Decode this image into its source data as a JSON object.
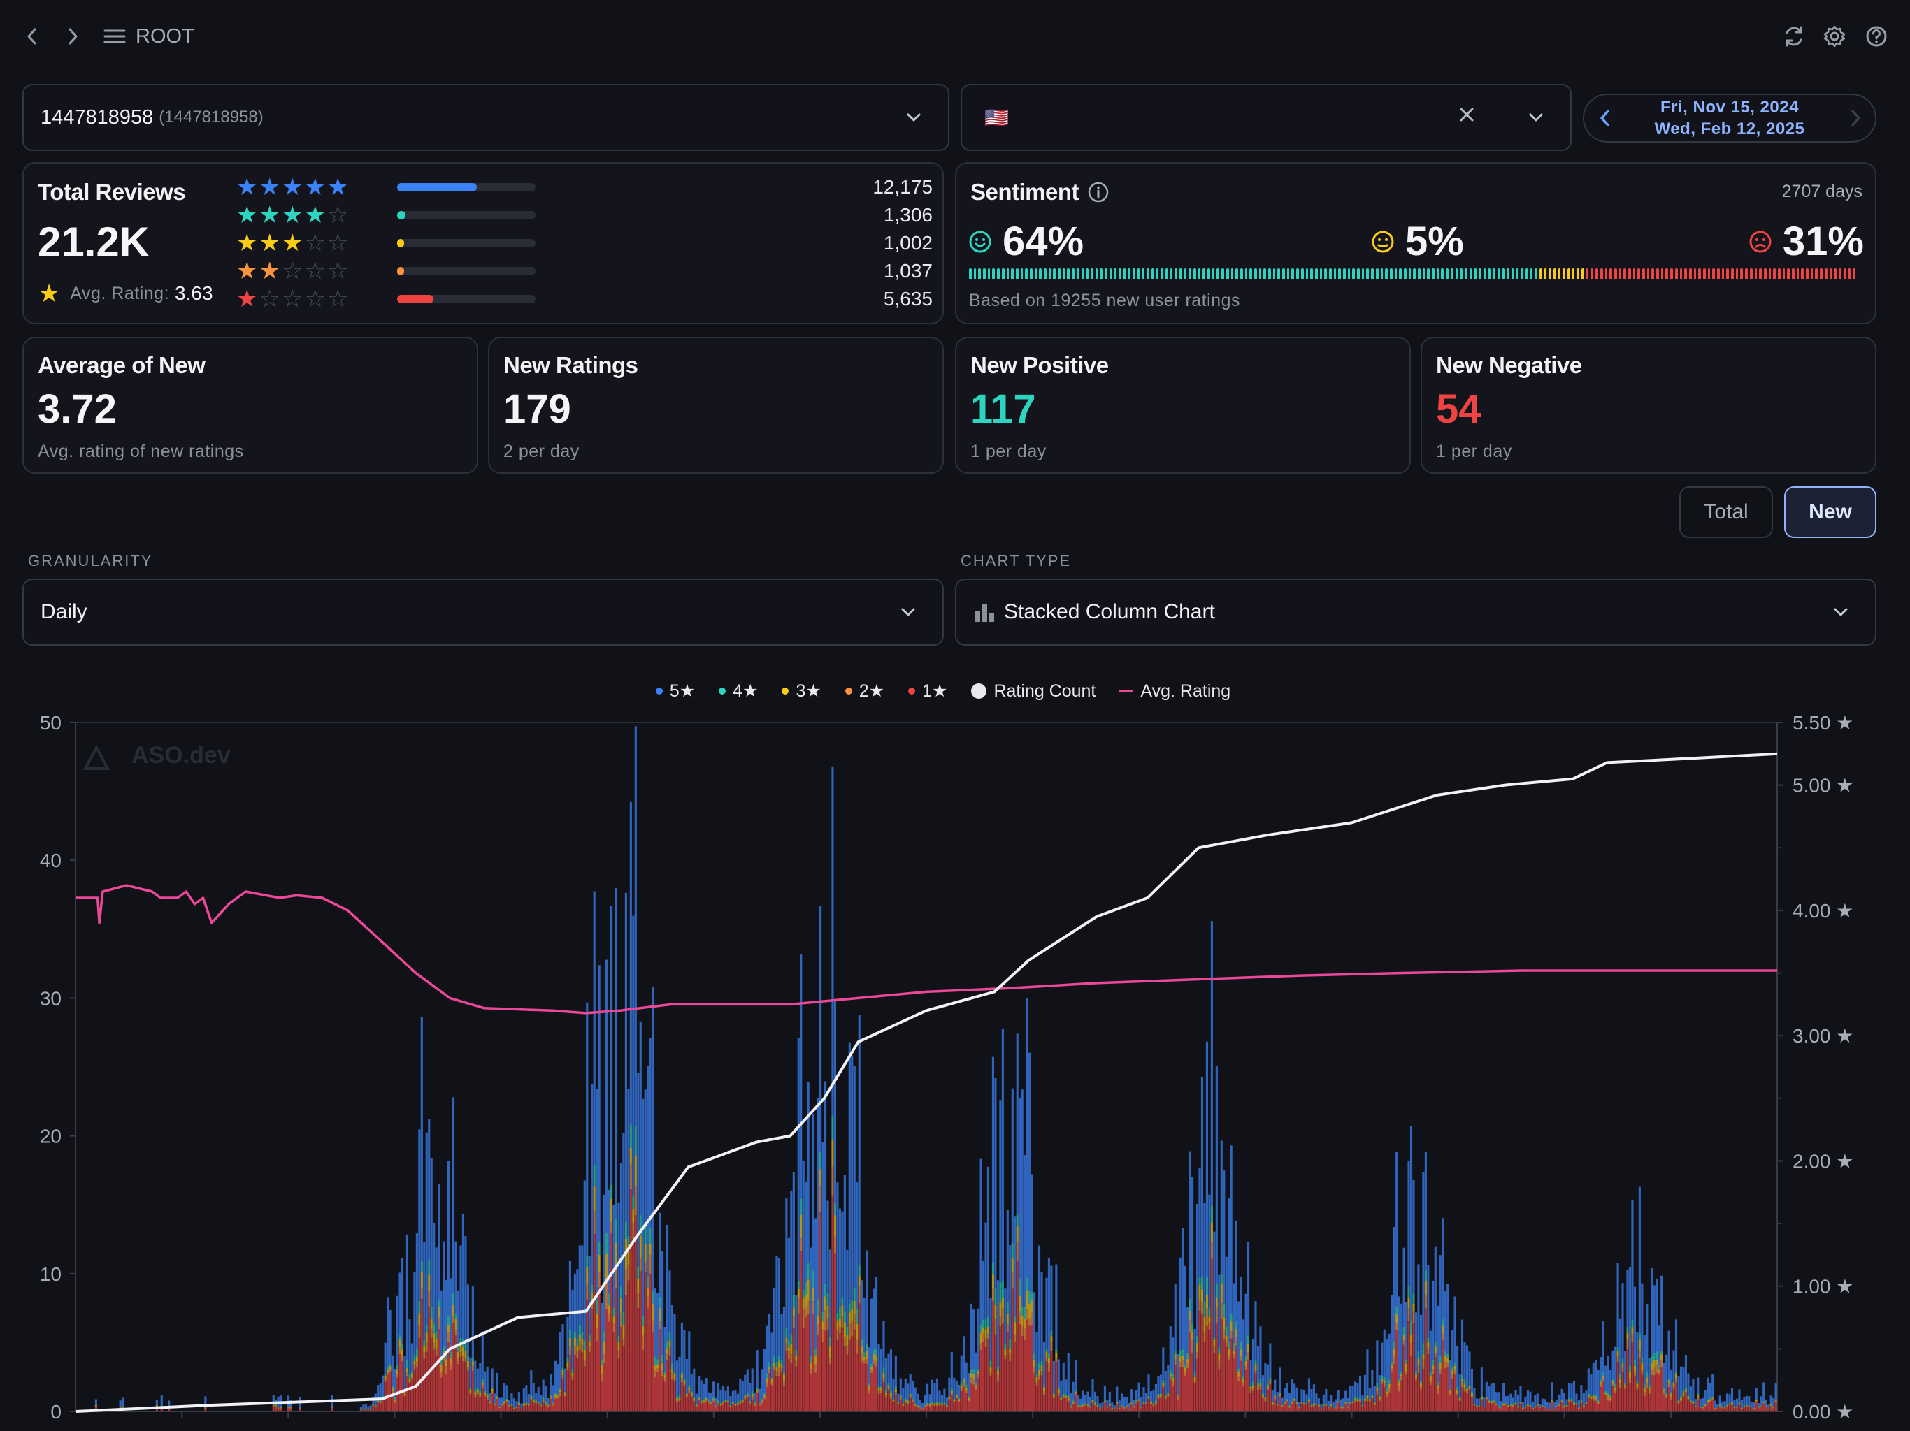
{
  "breadcrumb": {
    "label": "ROOT"
  },
  "app_select": {
    "id": "1447818958",
    "id_secondary": "(1447818958)"
  },
  "country_select": {
    "flag": "🇺🇸"
  },
  "date_range": {
    "start": "Fri, Nov 15, 2024",
    "end": "Wed, Feb 12, 2025"
  },
  "total_reviews": {
    "title": "Total Reviews",
    "value": "21.2K",
    "avg_label": "Avg. Rating:",
    "avg_value": "3.63",
    "rows": [
      {
        "stars": 5,
        "count": "12,175",
        "share": 0.57,
        "color": "#3b82f6"
      },
      {
        "stars": 4,
        "count": "1,306",
        "share": 0.06,
        "color": "#2dd4bf"
      },
      {
        "stars": 3,
        "count": "1,002",
        "share": 0.05,
        "color": "#facc15"
      },
      {
        "stars": 2,
        "count": "1,037",
        "share": 0.05,
        "color": "#fb923c"
      },
      {
        "stars": 1,
        "count": "5,635",
        "share": 0.26,
        "color": "#ef4444"
      }
    ]
  },
  "sentiment": {
    "title": "Sentiment",
    "days": "2707 days",
    "positive": "64%",
    "neutral": "5%",
    "negative": "31%",
    "positive_share": 0.64,
    "neutral_share": 0.05,
    "negative_share": 0.31,
    "footnote": "Based on 19255 new user ratings",
    "colors": {
      "positive": "#2dd4bf",
      "neutral": "#facc15",
      "negative": "#ef4444"
    }
  },
  "stats": [
    {
      "title": "Average of New",
      "value": "3.72",
      "sub": "Avg. rating of new ratings",
      "color": "#f4f5f8"
    },
    {
      "title": "New Ratings",
      "value": "179",
      "sub": "2 per day",
      "color": "#f4f5f8"
    },
    {
      "title": "New Positive",
      "value": "117",
      "sub": "1 per day",
      "color": "#2dd4bf"
    },
    {
      "title": "New Negative",
      "value": "54",
      "sub": "1 per day",
      "color": "#ef4444"
    }
  ],
  "toggle": {
    "total": "Total",
    "new": "New",
    "active": "New"
  },
  "granularity": {
    "label": "GRANULARITY",
    "value": "Daily"
  },
  "chart_type": {
    "label": "CHART TYPE",
    "value": "Stacked Column Chart"
  },
  "chart_data": {
    "type": "bar",
    "watermark": "ASO.dev",
    "legend": [
      {
        "name": "5★",
        "color": "#3b82f6",
        "kind": "dot"
      },
      {
        "name": "4★",
        "color": "#2dd4bf",
        "kind": "dot"
      },
      {
        "name": "3★",
        "color": "#facc15",
        "kind": "dot"
      },
      {
        "name": "2★",
        "color": "#fb923c",
        "kind": "dot"
      },
      {
        "name": "1★",
        "color": "#ef4444",
        "kind": "dot"
      },
      {
        "name": "Rating Count",
        "color": "#e8e9ee",
        "kind": "circle"
      },
      {
        "name": "Avg. Rating",
        "color": "#ec4899",
        "kind": "line"
      }
    ],
    "y_left": {
      "ticks": [
        "0",
        "10",
        "20",
        "30",
        "40",
        "50"
      ],
      "lim": [
        0,
        50
      ]
    },
    "y_right": {
      "ticks": [
        "0.00 ★",
        "1.00 ★",
        "2.00 ★",
        "3.00 ★",
        "4.00 ★",
        "5.00 ★",
        "5.50 ★"
      ],
      "values": [
        0,
        1,
        2,
        3,
        4,
        5,
        5.5
      ],
      "lim": [
        0,
        5.5
      ]
    },
    "bursts": [
      {
        "center": 0.21,
        "width": 0.03,
        "peak": 20
      },
      {
        "center": 0.32,
        "width": 0.035,
        "peak": 38
      },
      {
        "center": 0.44,
        "width": 0.035,
        "peak": 33
      },
      {
        "center": 0.55,
        "width": 0.03,
        "peak": 25
      },
      {
        "center": 0.67,
        "width": 0.03,
        "peak": 22
      },
      {
        "center": 0.79,
        "width": 0.03,
        "peak": 16
      },
      {
        "center": 0.92,
        "width": 0.03,
        "peak": 11
      }
    ],
    "rating_count_curve": [
      [
        0,
        0
      ],
      [
        0.08,
        0.05
      ],
      [
        0.18,
        0.1
      ],
      [
        0.2,
        0.2
      ],
      [
        0.22,
        0.5
      ],
      [
        0.26,
        0.75
      ],
      [
        0.3,
        0.8
      ],
      [
        0.33,
        1.4
      ],
      [
        0.36,
        1.95
      ],
      [
        0.4,
        2.15
      ],
      [
        0.42,
        2.2
      ],
      [
        0.44,
        2.5
      ],
      [
        0.46,
        2.95
      ],
      [
        0.5,
        3.2
      ],
      [
        0.54,
        3.35
      ],
      [
        0.56,
        3.6
      ],
      [
        0.6,
        3.95
      ],
      [
        0.63,
        4.1
      ],
      [
        0.66,
        4.5
      ],
      [
        0.7,
        4.6
      ],
      [
        0.75,
        4.7
      ],
      [
        0.8,
        4.92
      ],
      [
        0.84,
        5.0
      ],
      [
        0.88,
        5.05
      ],
      [
        0.9,
        5.18
      ],
      [
        0.93,
        5.2
      ],
      [
        1.0,
        5.25
      ]
    ],
    "avg_rating_curve": [
      [
        0,
        4.1
      ],
      [
        0.013,
        4.1
      ],
      [
        0.014,
        3.9
      ],
      [
        0.016,
        4.15
      ],
      [
        0.03,
        4.2
      ],
      [
        0.045,
        4.15
      ],
      [
        0.05,
        4.1
      ],
      [
        0.06,
        4.1
      ],
      [
        0.065,
        4.15
      ],
      [
        0.07,
        4.05
      ],
      [
        0.075,
        4.1
      ],
      [
        0.08,
        3.9
      ],
      [
        0.09,
        4.05
      ],
      [
        0.1,
        4.15
      ],
      [
        0.12,
        4.1
      ],
      [
        0.13,
        4.12
      ],
      [
        0.145,
        4.1
      ],
      [
        0.16,
        4.0
      ],
      [
        0.18,
        3.75
      ],
      [
        0.2,
        3.5
      ],
      [
        0.22,
        3.3
      ],
      [
        0.24,
        3.22
      ],
      [
        0.28,
        3.2
      ],
      [
        0.3,
        3.18
      ],
      [
        0.32,
        3.2
      ],
      [
        0.35,
        3.25
      ],
      [
        0.38,
        3.25
      ],
      [
        0.42,
        3.25
      ],
      [
        0.46,
        3.3
      ],
      [
        0.5,
        3.35
      ],
      [
        0.55,
        3.38
      ],
      [
        0.6,
        3.42
      ],
      [
        0.66,
        3.45
      ],
      [
        0.72,
        3.48
      ],
      [
        0.78,
        3.5
      ],
      [
        0.85,
        3.52
      ],
      [
        1.0,
        3.52
      ]
    ]
  }
}
